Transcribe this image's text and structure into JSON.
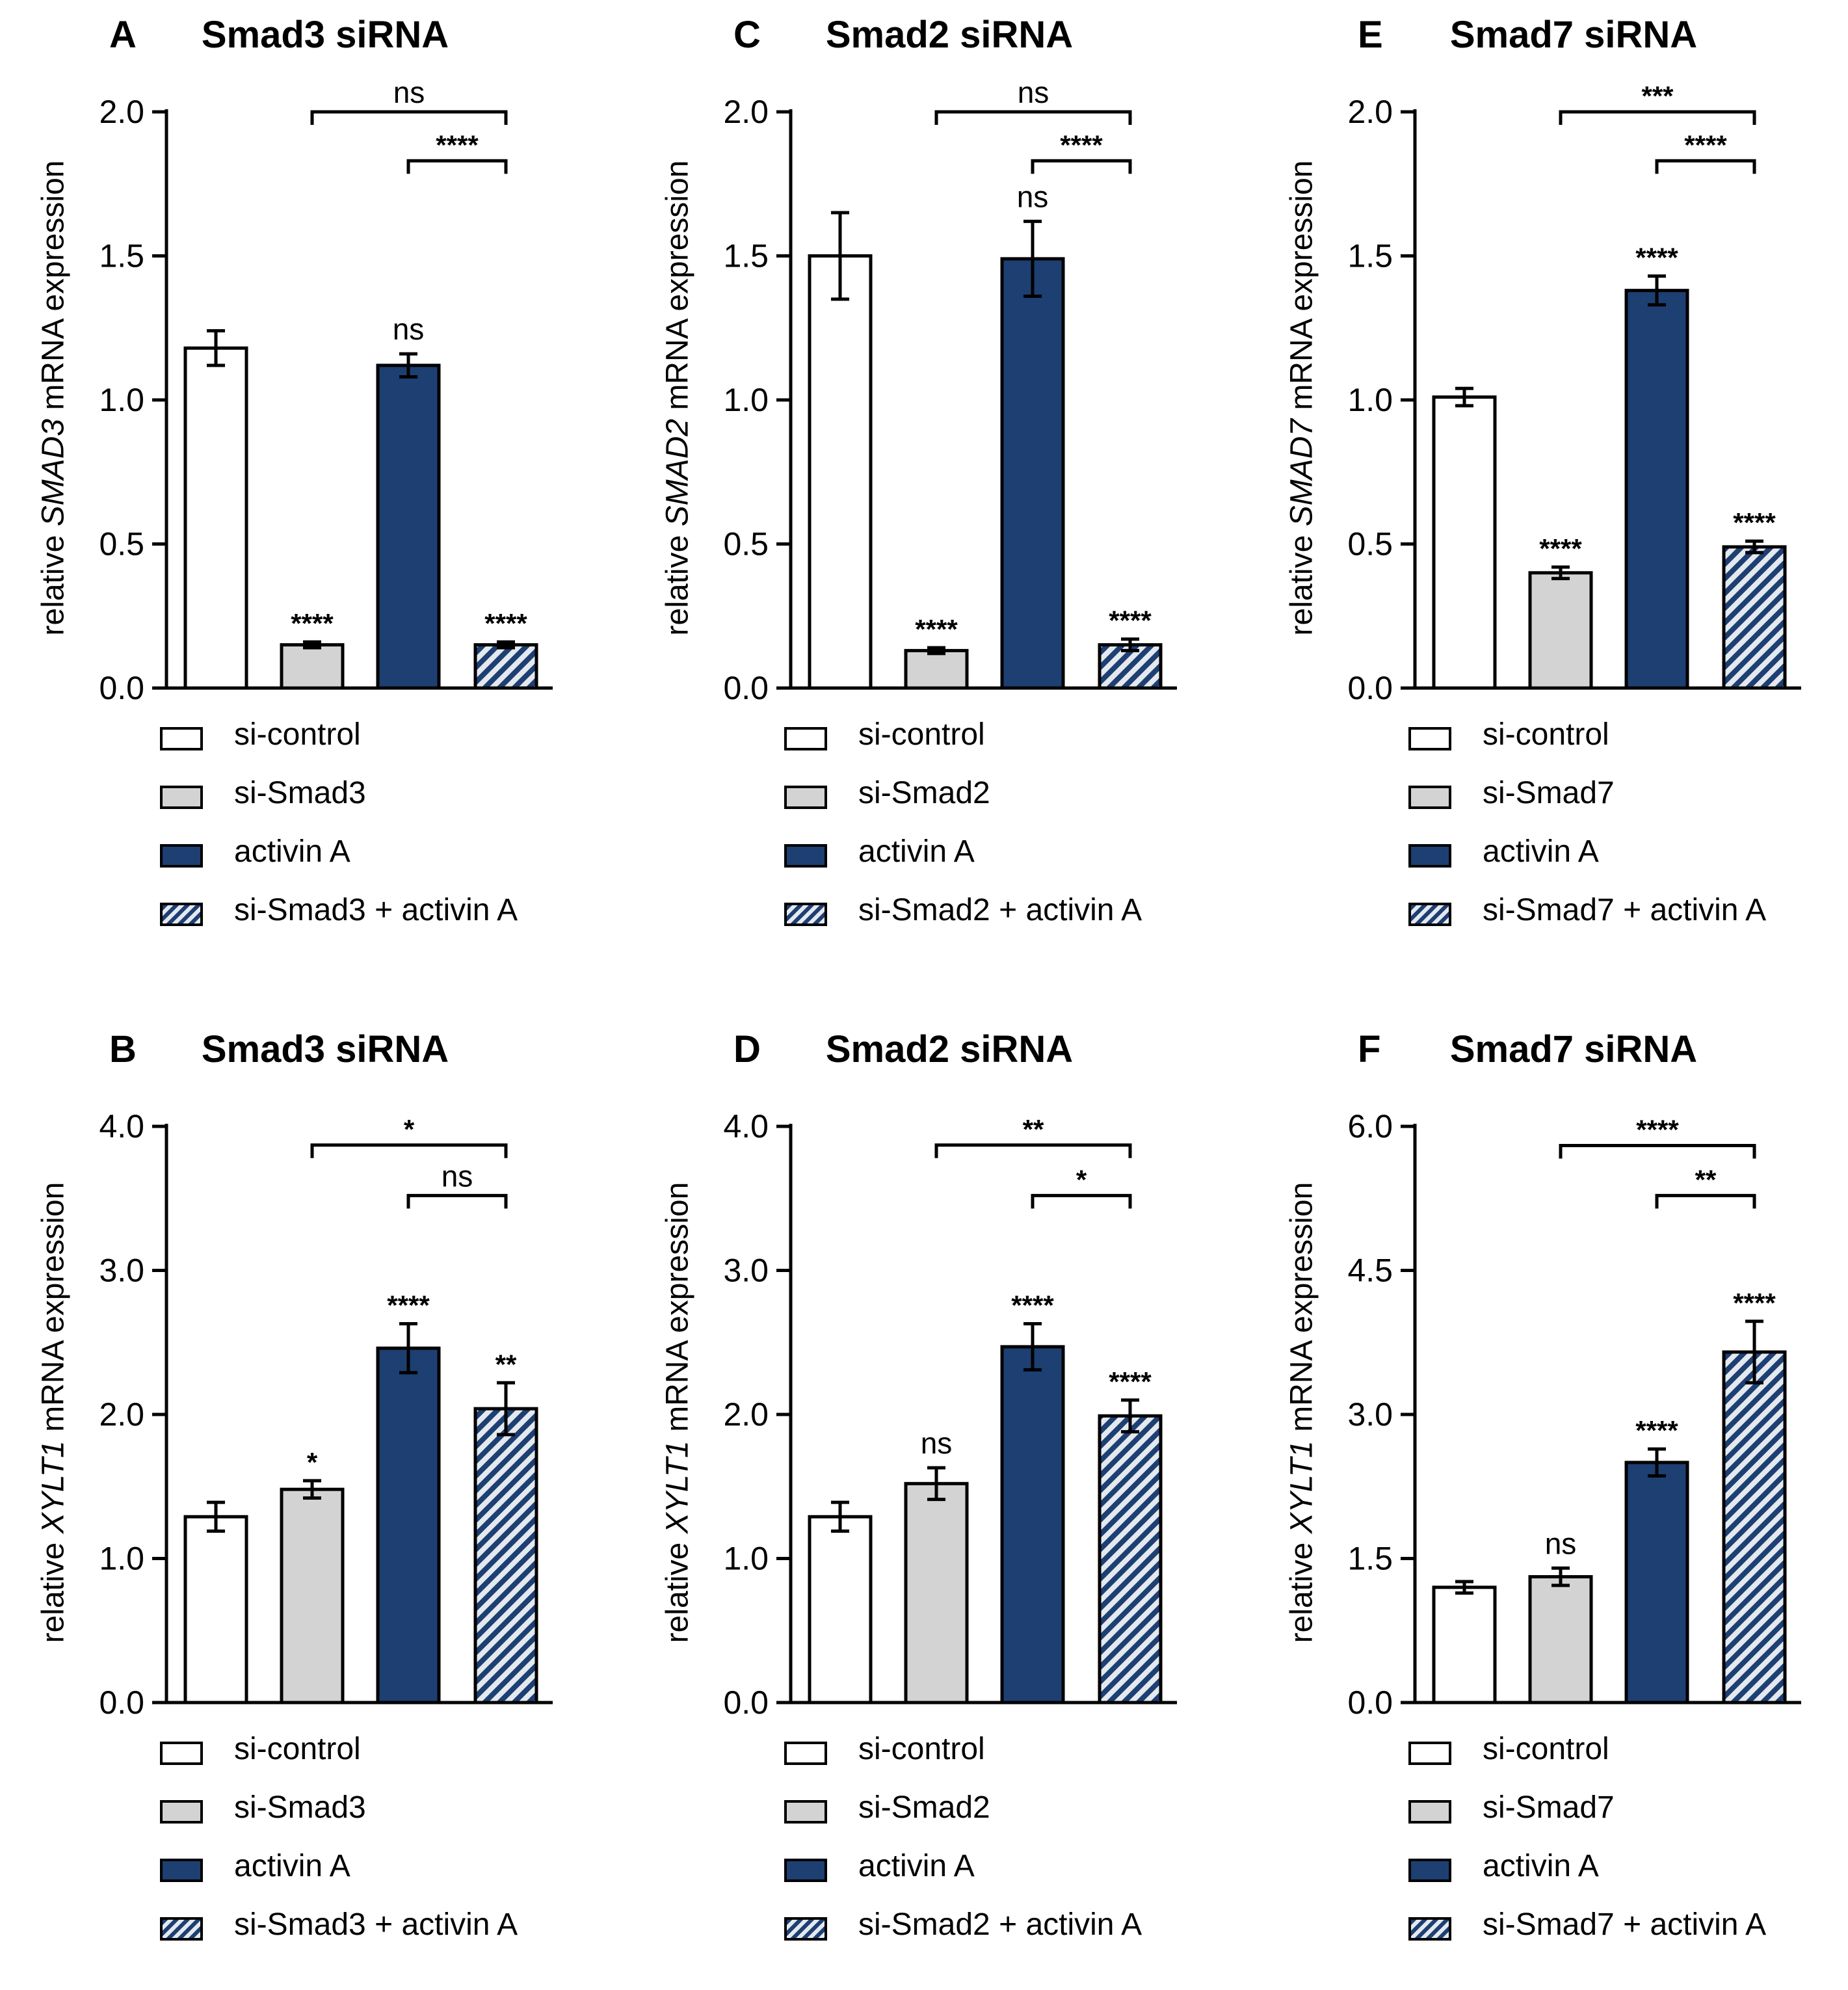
{
  "colors": {
    "white": "#ffffff",
    "gray": "#d3d3d3",
    "navy": "#1d3f72",
    "hatch_light": "#e4e8ef",
    "axis": "#000000"
  },
  "chart_data": [
    {
      "type": "bar",
      "letter": "A",
      "title": "Smad3 siRNA",
      "ylabel_pre": "relative ",
      "ylabel_gene": "SMAD3",
      "ylabel_post": " mRNA expression",
      "ylim": [
        0,
        2.0
      ],
      "yticks": [
        "0.0",
        "0.5",
        "1.0",
        "1.5",
        "2.0"
      ],
      "categories": [
        "si-control",
        "si-Smad3",
        "activin A",
        "si-Smad3 + activin A"
      ],
      "fills": [
        "white",
        "gray",
        "navy",
        "hatch"
      ],
      "values": [
        1.18,
        0.15,
        1.12,
        0.15
      ],
      "errors": [
        0.06,
        0.01,
        0.04,
        0.01
      ],
      "bar_labels": [
        "",
        "****",
        "ns",
        "****"
      ],
      "brackets": [
        {
          "from": 1,
          "to": 3,
          "y": 2.0,
          "label": "ns"
        },
        {
          "from": 2,
          "to": 3,
          "y": 1.83,
          "label": "****"
        }
      ],
      "legend": [
        "si-control",
        "si-Smad3",
        "activin A",
        "si-Smad3 + activin A"
      ]
    },
    {
      "type": "bar",
      "letter": "C",
      "title": "Smad2 siRNA",
      "ylabel_pre": "relative ",
      "ylabel_gene": "SMAD2",
      "ylabel_post": " mRNA expression",
      "ylim": [
        0,
        2.0
      ],
      "yticks": [
        "0.0",
        "0.5",
        "1.0",
        "1.5",
        "2.0"
      ],
      "categories": [
        "si-control",
        "si-Smad2",
        "activin A",
        "si-Smad2 + activin A"
      ],
      "fills": [
        "white",
        "gray",
        "navy",
        "hatch"
      ],
      "values": [
        1.5,
        0.13,
        1.49,
        0.15
      ],
      "errors": [
        0.15,
        0.01,
        0.13,
        0.02
      ],
      "bar_labels": [
        "",
        "****",
        "ns",
        "****"
      ],
      "brackets": [
        {
          "from": 1,
          "to": 3,
          "y": 2.0,
          "label": "ns"
        },
        {
          "from": 2,
          "to": 3,
          "y": 1.83,
          "label": "****"
        }
      ],
      "legend": [
        "si-control",
        "si-Smad2",
        "activin A",
        "si-Smad2 + activin A"
      ]
    },
    {
      "type": "bar",
      "letter": "E",
      "title": "Smad7 siRNA",
      "ylabel_pre": "relative ",
      "ylabel_gene": "SMAD7",
      "ylabel_post": " mRNA expression",
      "ylim": [
        0,
        2.0
      ],
      "yticks": [
        "0.0",
        "0.5",
        "1.0",
        "1.5",
        "2.0"
      ],
      "categories": [
        "si-control",
        "si-Smad7",
        "activin A",
        "si-Smad7 + activin A"
      ],
      "fills": [
        "white",
        "gray",
        "navy",
        "hatch"
      ],
      "values": [
        1.01,
        0.4,
        1.38,
        0.49
      ],
      "errors": [
        0.03,
        0.02,
        0.05,
        0.02
      ],
      "bar_labels": [
        "",
        "****",
        "****",
        "****"
      ],
      "brackets": [
        {
          "from": 1,
          "to": 3,
          "y": 2.0,
          "label": "***"
        },
        {
          "from": 2,
          "to": 3,
          "y": 1.83,
          "label": "****"
        }
      ],
      "legend": [
        "si-control",
        "si-Smad7",
        "activin A",
        "si-Smad7 + activin A"
      ]
    },
    {
      "type": "bar",
      "letter": "B",
      "title": "Smad3 siRNA",
      "ylabel_pre": "relative ",
      "ylabel_gene": "XYLT1",
      "ylabel_post": " mRNA expression",
      "ylim": [
        0,
        4.0
      ],
      "yticks": [
        "0.0",
        "1.0",
        "2.0",
        "3.0",
        "4.0"
      ],
      "categories": [
        "si-control",
        "si-Smad3",
        "activin A",
        "si-Smad3 + activin A"
      ],
      "fills": [
        "white",
        "gray",
        "navy",
        "hatch"
      ],
      "values": [
        1.29,
        1.48,
        2.46,
        2.04
      ],
      "errors": [
        0.1,
        0.06,
        0.17,
        0.18
      ],
      "bar_labels": [
        "",
        "*",
        "****",
        "**"
      ],
      "brackets": [
        {
          "from": 1,
          "to": 3,
          "y": 3.87,
          "label": "*"
        },
        {
          "from": 2,
          "to": 3,
          "y": 3.52,
          "label": "ns"
        }
      ],
      "legend": [
        "si-control",
        "si-Smad3",
        "activin A",
        "si-Smad3 + activin A"
      ]
    },
    {
      "type": "bar",
      "letter": "D",
      "title": "Smad2 siRNA",
      "ylabel_pre": "relative ",
      "ylabel_gene": "XYLT1",
      "ylabel_post": " mRNA expression",
      "ylim": [
        0,
        4.0
      ],
      "yticks": [
        "0.0",
        "1.0",
        "2.0",
        "3.0",
        "4.0"
      ],
      "categories": [
        "si-control",
        "si-Smad2",
        "activin A",
        "si-Smad2 + activin A"
      ],
      "fills": [
        "white",
        "gray",
        "navy",
        "hatch"
      ],
      "values": [
        1.29,
        1.52,
        2.47,
        1.99
      ],
      "errors": [
        0.1,
        0.11,
        0.16,
        0.11
      ],
      "bar_labels": [
        "",
        "ns",
        "****",
        "****"
      ],
      "brackets": [
        {
          "from": 1,
          "to": 3,
          "y": 3.87,
          "label": "**"
        },
        {
          "from": 2,
          "to": 3,
          "y": 3.52,
          "label": "*"
        }
      ],
      "legend": [
        "si-control",
        "si-Smad2",
        "activin A",
        "si-Smad2 + activin A"
      ]
    },
    {
      "type": "bar",
      "letter": "F",
      "title": "Smad7 siRNA",
      "ylabel_pre": "relative ",
      "ylabel_gene": "XYLT1",
      "ylabel_post": " mRNA expression",
      "ylim": [
        0,
        6.0
      ],
      "yticks": [
        "0.0",
        "1.5",
        "3.0",
        "4.5",
        "6.0"
      ],
      "categories": [
        "si-control",
        "si-Smad7",
        "activin A",
        "si-Smad7 + activin A"
      ],
      "fills": [
        "white",
        "gray",
        "navy",
        "hatch"
      ],
      "values": [
        1.2,
        1.31,
        2.5,
        3.65
      ],
      "errors": [
        0.06,
        0.09,
        0.14,
        0.32
      ],
      "bar_labels": [
        "",
        "ns",
        "****",
        "****"
      ],
      "brackets": [
        {
          "from": 1,
          "to": 3,
          "y": 5.8,
          "label": "****"
        },
        {
          "from": 2,
          "to": 3,
          "y": 5.28,
          "label": "**"
        }
      ],
      "legend": [
        "si-control",
        "si-Smad7",
        "activin A",
        "si-Smad7 + activin A"
      ]
    }
  ]
}
